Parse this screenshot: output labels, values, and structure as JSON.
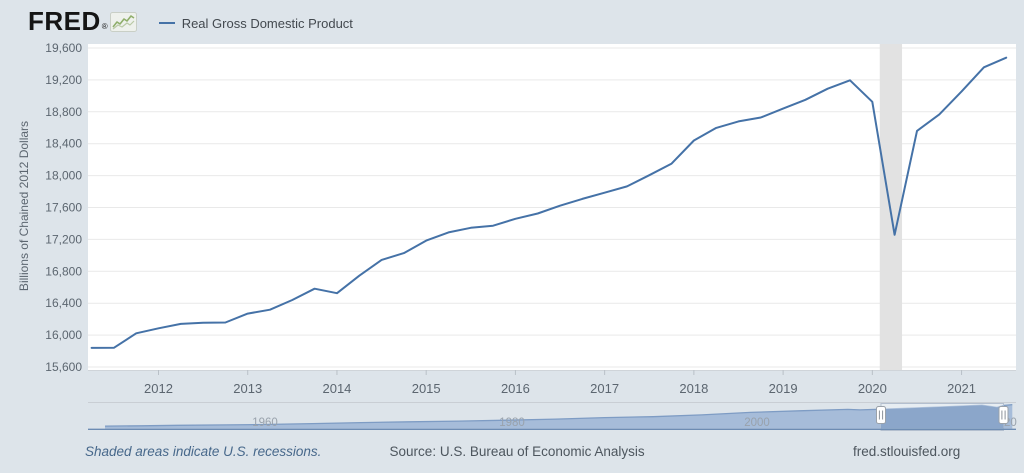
{
  "header": {
    "logo_text": "FRED",
    "logo_reg": "®"
  },
  "legend": {
    "series_label": "Real Gross Domestic Product",
    "series_color": "#4572a7"
  },
  "chart_data": {
    "type": "line",
    "title": "Real Gross Domestic Product",
    "ylabel": "Billions of Chained 2012 Dollars",
    "line_color": "#4572a7",
    "grid": "horizontal",
    "legend_position": "top-left",
    "ylim": [
      15600,
      19600
    ],
    "y_ticks": [
      15600,
      16000,
      16400,
      16800,
      17200,
      17600,
      18000,
      18400,
      18800,
      19200,
      19600
    ],
    "x_axis_years": [
      2012,
      2013,
      2014,
      2015,
      2016,
      2017,
      2018,
      2019,
      2020,
      2021
    ],
    "xlim_decimal_years": [
      2011.21,
      2021.61
    ],
    "x_quarters": [
      "2011 Q2",
      "2011 Q3",
      "2011 Q4",
      "2012 Q1",
      "2012 Q2",
      "2012 Q3",
      "2012 Q4",
      "2013 Q1",
      "2013 Q2",
      "2013 Q3",
      "2013 Q4",
      "2014 Q1",
      "2014 Q2",
      "2014 Q3",
      "2014 Q4",
      "2015 Q1",
      "2015 Q2",
      "2015 Q3",
      "2015 Q4",
      "2016 Q1",
      "2016 Q2",
      "2016 Q3",
      "2016 Q4",
      "2017 Q1",
      "2017 Q2",
      "2017 Q3",
      "2017 Q4",
      "2018 Q1",
      "2018 Q2",
      "2018 Q3",
      "2018 Q4",
      "2019 Q1",
      "2019 Q2",
      "2019 Q3",
      "2019 Q4",
      "2020 Q1",
      "2020 Q2",
      "2020 Q3",
      "2020 Q4",
      "2021 Q1",
      "2021 Q2",
      "2021 Q3"
    ],
    "values": [
      15839,
      15841,
      16022,
      16085,
      16140,
      16155,
      16158,
      16269,
      16318,
      16440,
      16582,
      16525,
      16745,
      16943,
      17028,
      17185,
      17288,
      17346,
      17372,
      17458,
      17525,
      17623,
      17708,
      17786,
      17865,
      18005,
      18150,
      18440,
      18598,
      18680,
      18728,
      18840,
      18950,
      19090,
      19195,
      18925,
      17258,
      18561,
      18768,
      19056,
      19358,
      19478
    ],
    "recession_shading": {
      "start_decimal_year": 2020.083,
      "end_decimal_year": 2020.333
    }
  },
  "slider": {
    "labels": [
      "1960",
      "1980",
      "2000",
      "2020"
    ],
    "range_decimal_years": [
      1945.6,
      2021.8
    ],
    "series": {
      "years": [
        1947,
        1950,
        1953,
        1957,
        1960,
        1964,
        1968,
        1972,
        1976,
        1980,
        1984,
        1988,
        1992,
        1996,
        2000,
        2004,
        2008,
        2009,
        2012,
        2016,
        2019,
        2020.25,
        2020.75,
        2021.5
      ],
      "values": [
        1934,
        2186,
        2639,
        2957,
        3260,
        4041,
        4792,
        5458,
        6015,
        6759,
        7681,
        8866,
        9668,
        11100,
        13131,
        14464,
        15605,
        15209,
        16197,
        17707,
        19032,
        17258,
        18768,
        19478
      ]
    }
  },
  "footer": {
    "note": "Shaded areas indicate U.S. recessions.",
    "source": "Source: U.S. Bureau of Economic Analysis",
    "site": "fred.stlouisfed.org"
  },
  "colors": {
    "background": "#dde4ea",
    "plot_background": "#ffffff",
    "gridline": "#e9e9e9",
    "axis_text": "#5c6670",
    "recession_band": "#e2e2e2",
    "slider_area_fill": "#a6bcd9",
    "slider_area_line": "#7e9cc4",
    "slider_selected_fill": "#8ba6ca",
    "slider_baseline": "#6d8cb3"
  }
}
